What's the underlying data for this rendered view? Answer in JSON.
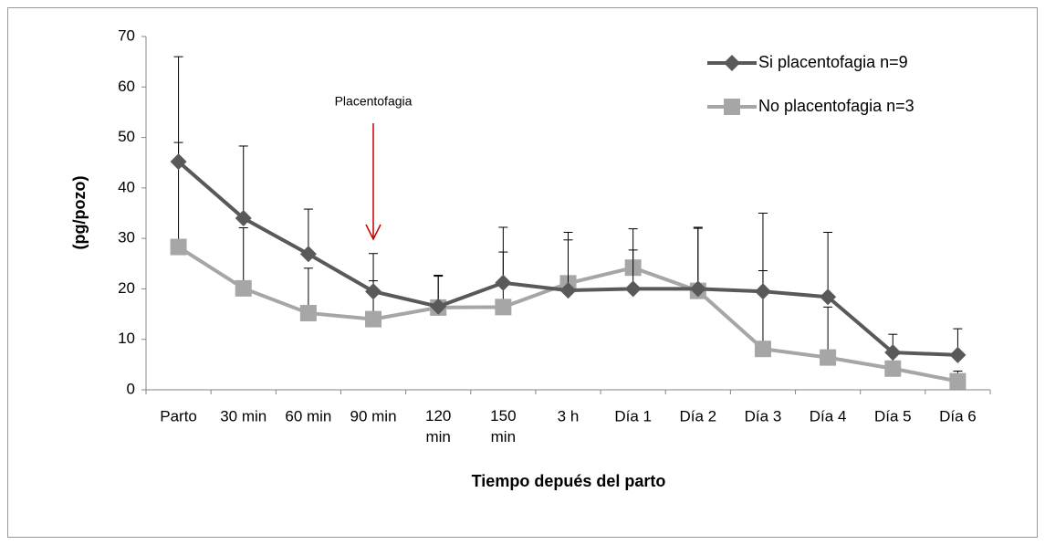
{
  "chart_data": {
    "type": "line",
    "annotation": "Placentofagia",
    "x_label": "Tiempo depués del parto",
    "y_label": "(pg/pozo)",
    "categories": [
      "Parto",
      "30 min",
      "60 min",
      "90 min",
      "120 min",
      "150 min",
      "3 h",
      "Día 1",
      "Día 2",
      "Día 3",
      "Día 4",
      "Día 5",
      "Día 6"
    ],
    "series": [
      {
        "name": "Si placentofagia n=9",
        "color": "#595959",
        "marker": "diamond",
        "values": [
          45.2,
          34,
          26.9,
          19.5,
          16.5,
          21.2,
          19.7,
          20,
          20,
          19.5,
          18.4,
          7.4,
          6.9
        ],
        "errors": [
          20.8,
          14.3,
          8.9,
          7.5,
          6.2,
          11,
          11.5,
          11.9,
          12.2,
          15.5,
          12.8,
          3.6,
          5.2
        ]
      },
      {
        "name": "No placentofagia n=3",
        "color": "#a6a6a6",
        "marker": "square",
        "values": [
          28.3,
          20.1,
          15.2,
          14,
          16.3,
          16.4,
          21.1,
          24.2,
          19.6,
          8.1,
          6.4,
          4.2,
          1.7
        ],
        "errors": [
          20.7,
          12,
          8.9,
          7.6,
          6.2,
          10.9,
          8.6,
          3.5,
          12.4,
          15.5,
          10,
          3,
          2
        ]
      }
    ],
    "ylim": [
      0,
      70
    ],
    "yticks": [
      0,
      10,
      20,
      30,
      40,
      50,
      60,
      70
    ],
    "legend": "top-right"
  }
}
